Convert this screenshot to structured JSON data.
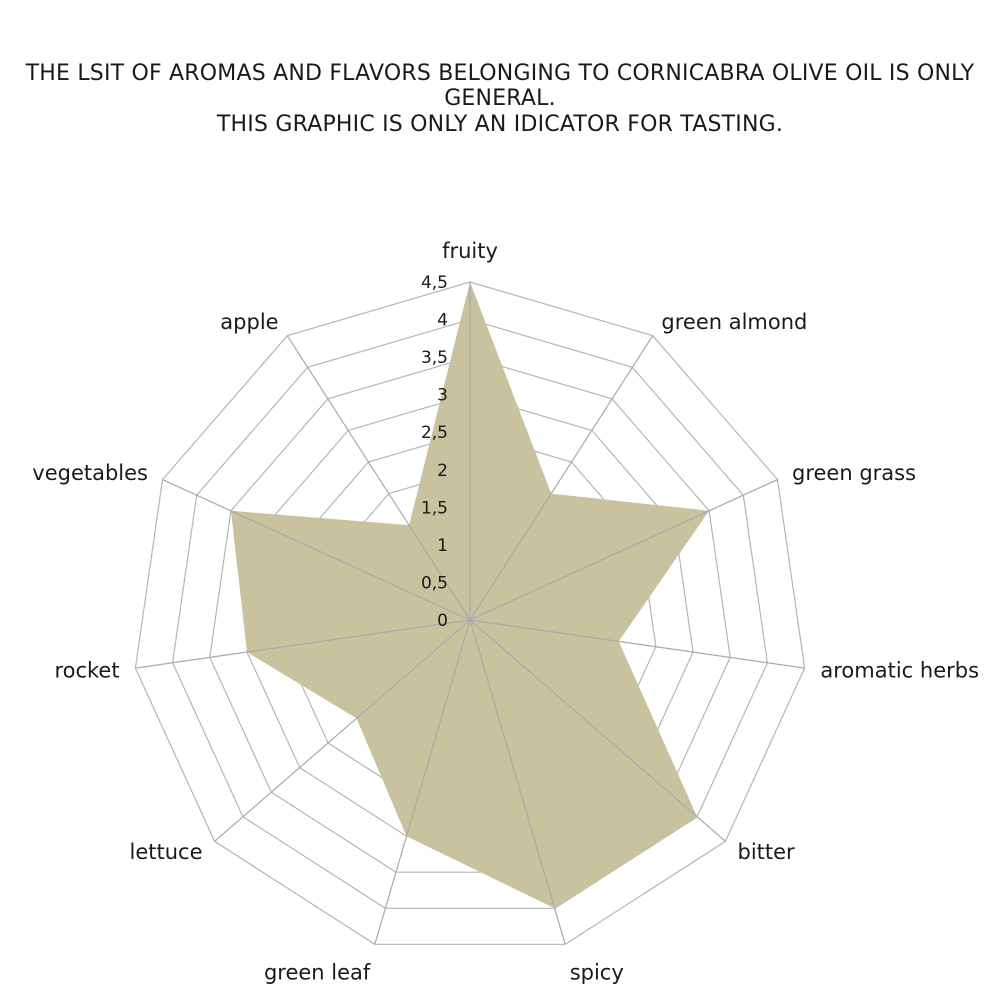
{
  "header": {
    "line1": "THE LSIT OF AROMAS AND FLAVORS BELONGING TO CORNICABRA OLIVE OIL IS ONLY GENERAL.",
    "line2": "THIS GRAPHIC IS ONLY AN IDICATOR FOR TASTING."
  },
  "chart_data": {
    "type": "radar",
    "categories": [
      "fruity",
      "green almond",
      "green grass",
      "aromatic herbs",
      "bitter",
      "spicy",
      "green leaf",
      "lettuce",
      "rocket",
      "vegetables",
      "apple"
    ],
    "series": [
      {
        "values": [
          4.5,
          2.0,
          3.5,
          2.0,
          4.0,
          4.0,
          3.0,
          2.0,
          3.0,
          3.5,
          1.5
        ]
      }
    ],
    "r_ticks": [
      "0",
      "0,5",
      "1",
      "1,5",
      "2",
      "2,5",
      "3",
      "3,5",
      "4",
      "4,5"
    ],
    "r_range": [
      0,
      4.5
    ],
    "grid": true,
    "fill_color": "#c8c29e",
    "grid_color": "#b5b5b5"
  }
}
